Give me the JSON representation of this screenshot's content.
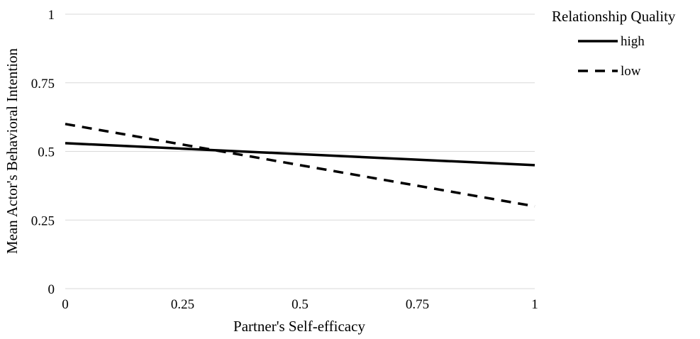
{
  "chart_data": {
    "type": "line",
    "title": "",
    "xlabel": "Partner's Self-efficacy",
    "ylabel": "Mean Actor's Behavioral Intention",
    "xlim": [
      0,
      1
    ],
    "ylim": [
      0,
      1
    ],
    "x_ticks": [
      0,
      0.25,
      0.5,
      0.75,
      1
    ],
    "x_tick_labels": [
      "0",
      "0.25",
      "0.5",
      "0.75",
      "1"
    ],
    "y_ticks": [
      0,
      0.25,
      0.5,
      0.75,
      1
    ],
    "y_tick_labels": [
      "0",
      "0.25",
      "0.5",
      "0.75",
      "1"
    ],
    "grid": "horizontal",
    "legend_title": "Relationship Quality",
    "legend_position": "right",
    "series": [
      {
        "name": "high",
        "line_style": "solid",
        "color": "#000000",
        "x": [
          0,
          1
        ],
        "y": [
          0.53,
          0.45
        ]
      },
      {
        "name": "low",
        "line_style": "dashed",
        "color": "#000000",
        "x": [
          0,
          1
        ],
        "y": [
          0.6,
          0.3
        ]
      }
    ],
    "gridline_color": "#d9d9d9"
  }
}
